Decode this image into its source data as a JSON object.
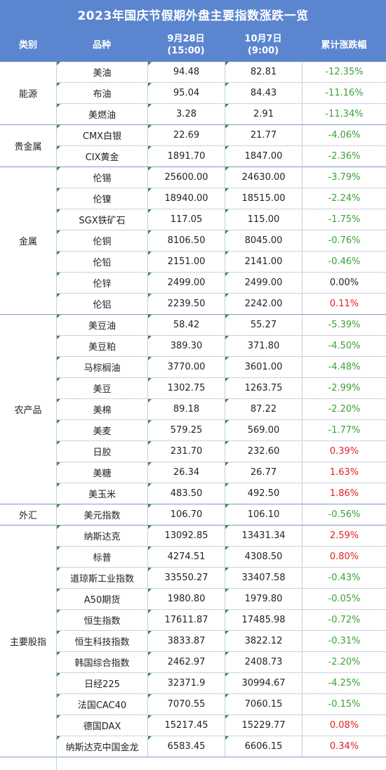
{
  "title": "2023年国庆节假期外盘主要指数涨跌一览",
  "header": {
    "category": "类别",
    "name": "品种",
    "date1_line1": "9月28日",
    "date1_line2": "(15:00)",
    "date2_line1": "10月7日",
    "date2_line2": "(9:00)",
    "change": "累计涨跌幅"
  },
  "colors": {
    "header_bg": "#5b86cf",
    "negative": "#3aa23a",
    "positive": "#e0202a"
  },
  "groups": [
    {
      "category": "能源",
      "rows": [
        {
          "name": "美油",
          "d1": "94.48",
          "d2": "82.81",
          "chg": "-12.35%",
          "dir": "neg"
        },
        {
          "name": "布油",
          "d1": "95.04",
          "d2": "84.43",
          "chg": "-11.16%",
          "dir": "neg"
        },
        {
          "name": "美燃油",
          "d1": "3.28",
          "d2": "2.91",
          "chg": "-11.34%",
          "dir": "neg"
        }
      ]
    },
    {
      "category": "贵金属",
      "rows": [
        {
          "name": "CMX白银",
          "d1": "22.69",
          "d2": "21.77",
          "chg": "-4.06%",
          "dir": "neg"
        },
        {
          "name": "CIX黄金",
          "d1": "1891.70",
          "d2": "1847.00",
          "chg": "-2.36%",
          "dir": "neg"
        }
      ]
    },
    {
      "category": "金属",
      "rows": [
        {
          "name": "伦锡",
          "d1": "25600.00",
          "d2": "24630.00",
          "chg": "-3.79%",
          "dir": "neg"
        },
        {
          "name": "伦镍",
          "d1": "18940.00",
          "d2": "18515.00",
          "chg": "-2.24%",
          "dir": "neg"
        },
        {
          "name": "SGX铁矿石",
          "d1": "117.05",
          "d2": "115.00",
          "chg": "-1.75%",
          "dir": "neg"
        },
        {
          "name": "伦铜",
          "d1": "8106.50",
          "d2": "8045.00",
          "chg": "-0.76%",
          "dir": "neg"
        },
        {
          "name": "伦铅",
          "d1": "2151.00",
          "d2": "2141.00",
          "chg": "-0.46%",
          "dir": "neg"
        },
        {
          "name": "伦锌",
          "d1": "2499.00",
          "d2": "2499.00",
          "chg": "0.00%",
          "dir": "zero"
        },
        {
          "name": "伦铝",
          "d1": "2239.50",
          "d2": "2242.00",
          "chg": "0.11%",
          "dir": "pos"
        }
      ]
    },
    {
      "category": "农产品",
      "rows": [
        {
          "name": "美豆油",
          "d1": "58.42",
          "d2": "55.27",
          "chg": "-5.39%",
          "dir": "neg"
        },
        {
          "name": "美豆粕",
          "d1": "389.30",
          "d2": "371.80",
          "chg": "-4.50%",
          "dir": "neg"
        },
        {
          "name": "马棕榈油",
          "d1": "3770.00",
          "d2": "3601.00",
          "chg": "-4.48%",
          "dir": "neg"
        },
        {
          "name": "美豆",
          "d1": "1302.75",
          "d2": "1263.75",
          "chg": "-2.99%",
          "dir": "neg"
        },
        {
          "name": "美棉",
          "d1": "89.18",
          "d2": "87.22",
          "chg": "-2.20%",
          "dir": "neg"
        },
        {
          "name": "美麦",
          "d1": "579.25",
          "d2": "569.00",
          "chg": "-1.77%",
          "dir": "neg"
        },
        {
          "name": "日胶",
          "d1": "231.70",
          "d2": "232.60",
          "chg": "0.39%",
          "dir": "pos"
        },
        {
          "name": "美糖",
          "d1": "26.34",
          "d2": "26.77",
          "chg": "1.63%",
          "dir": "pos"
        },
        {
          "name": "美玉米",
          "d1": "483.50",
          "d2": "492.50",
          "chg": "1.86%",
          "dir": "pos"
        }
      ]
    },
    {
      "category": "外汇",
      "rows": [
        {
          "name": "美元指数",
          "d1": "106.70",
          "d2": "106.10",
          "chg": "-0.56%",
          "dir": "neg"
        }
      ]
    },
    {
      "category": "主要股指",
      "rows": [
        {
          "name": "纳斯达克",
          "d1": "13092.85",
          "d2": "13431.34",
          "chg": "2.59%",
          "dir": "pos"
        },
        {
          "name": "标普",
          "d1": "4274.51",
          "d2": "4308.50",
          "chg": "0.80%",
          "dir": "pos"
        },
        {
          "name": "道琼斯工业指数",
          "d1": "33550.27",
          "d2": "33407.58",
          "chg": "-0.43%",
          "dir": "neg"
        },
        {
          "name": "A50期货",
          "d1": "1980.80",
          "d2": "1979.80",
          "chg": "-0.05%",
          "dir": "neg"
        },
        {
          "name": "恒生指数",
          "d1": "17611.87",
          "d2": "17485.98",
          "chg": "-0.72%",
          "dir": "neg"
        },
        {
          "name": "恒生科技指数",
          "d1": "3833.87",
          "d2": "3822.12",
          "chg": "-0.31%",
          "dir": "neg"
        },
        {
          "name": "韩国综合指数",
          "d1": "2462.97",
          "d2": "2408.73",
          "chg": "-2.20%",
          "dir": "neg"
        },
        {
          "name": "日经225",
          "d1": "32371.9",
          "d2": "30994.67",
          "chg": "-4.25%",
          "dir": "neg"
        },
        {
          "name": "法国CAC40",
          "d1": "7070.55",
          "d2": "7060.15",
          "chg": "-0.15%",
          "dir": "neg"
        },
        {
          "name": "德国DAX",
          "d1": "15217.45",
          "d2": "15229.77",
          "chg": "0.08%",
          "dir": "pos"
        },
        {
          "name": "纳斯达克中国金龙",
          "d1": "6583.45",
          "d2": "6606.15",
          "chg": "0.34%",
          "dir": "pos"
        }
      ]
    }
  ]
}
